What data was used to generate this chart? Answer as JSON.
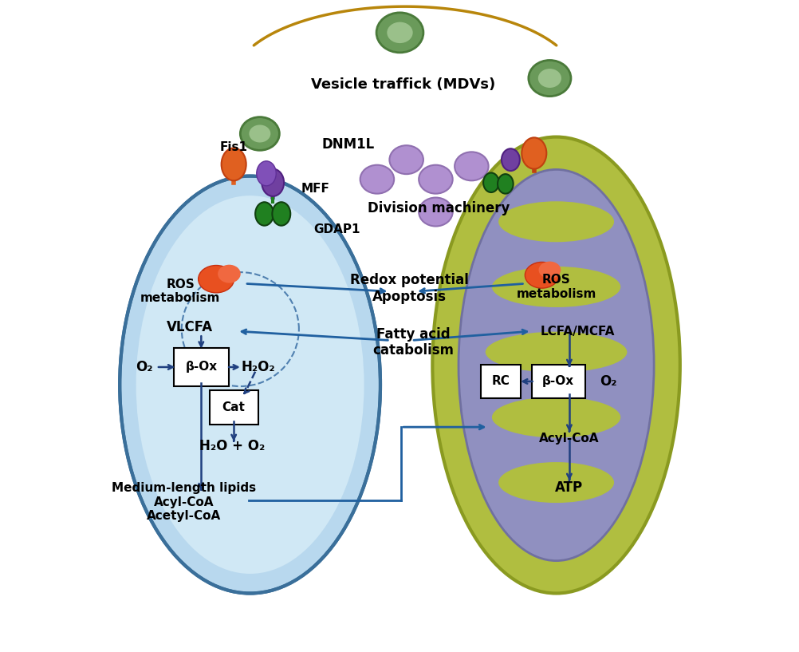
{
  "bg_color": "#ffffff",
  "vesicle_label": "Vesicle traffick (MDVs)",
  "labels": {
    "fis1": "Fis1",
    "dnm1l": "DNM1L",
    "mff": "MFF",
    "division": "Division machinery",
    "gdap1": "GDAP1",
    "redox": "Redox potential\nApoptosis",
    "fatty": "Fatty acid\ncatabolism",
    "ros_pero": "ROS\nmetabolism",
    "vlcfa": "VLCFA",
    "o2_pero": "O₂",
    "beta_ox_pero": "β-Ox",
    "h2o2": "H₂O₂",
    "cat": "Cat",
    "h2o_o2": "H₂O + O₂",
    "medium": "Medium-length lipids\nAcyl-CoA\nAcetyl-CoA",
    "ros_mito": "ROS\nmetabolism",
    "lcfa": "LCFA/MCFA",
    "rc": "RC",
    "beta_ox_mito": "β-Ox",
    "o2_mito": "O₂",
    "acylcoa": "Acyl-CoA",
    "atp": "ATP"
  },
  "colors": {
    "peroxisome_fill": "#b8d8ee",
    "peroxisome_inner": "#d0e8f5",
    "peroxisome_edge": "#3a6f9a",
    "mito_outer_fill": "#b0be40",
    "mito_outer_edge": "#8a9a20",
    "mito_inner_fill": "#9090c0",
    "mito_inner_edge": "#7070a0",
    "crista_fill": "#b0be40",
    "crista_edge": "#9090c0",
    "vesicle_fill": "#6a9a5a",
    "vesicle_edge": "#4a7a3a",
    "vesicle_inner": "#9ac08a",
    "arc_gold": "#b8860b",
    "dnm1l_fill": "#b090d0",
    "dnm1l_edge": "#9070b0",
    "fis1_fill": "#e06020",
    "fis1_edge": "#c04010",
    "mff_fill": "#7040a0",
    "mff_edge": "#502080",
    "gdap1_fill": "#208020",
    "gdap1_edge": "#104010",
    "ros_fill": "#e85020",
    "ros_edge": "#c83010",
    "ros_highlight": "#f06840",
    "arrow_blue": "#204080",
    "cross_arrow": "#2060a0",
    "dashed_circle": "#5080b0"
  }
}
